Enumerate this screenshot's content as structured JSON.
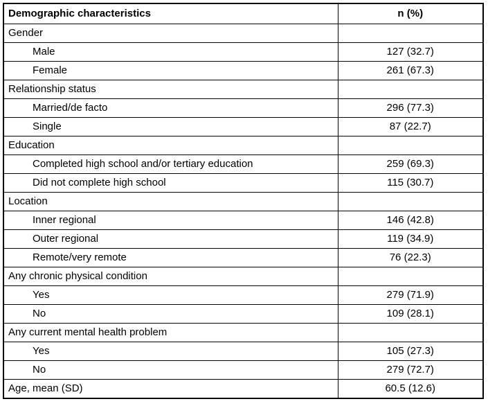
{
  "table": {
    "headers": [
      "Demographic characteristics",
      "n (%)"
    ],
    "rows": [
      {
        "label": "Gender",
        "value": "",
        "indent": false
      },
      {
        "label": "Male",
        "value": "127 (32.7)",
        "indent": true
      },
      {
        "label": "Female",
        "value": "261 (67.3)",
        "indent": true
      },
      {
        "label": "Relationship status",
        "value": "",
        "indent": false
      },
      {
        "label": "Married/de facto",
        "value": "296 (77.3)",
        "indent": true
      },
      {
        "label": "Single",
        "value": "87 (22.7)",
        "indent": true
      },
      {
        "label": "Education",
        "value": "",
        "indent": false
      },
      {
        "label": "Completed high school and/or tertiary education",
        "value": "259 (69.3)",
        "indent": true
      },
      {
        "label": "Did not complete high school",
        "value": "115 (30.7)",
        "indent": true
      },
      {
        "label": "Location",
        "value": "",
        "indent": false
      },
      {
        "label": "Inner regional",
        "value": "146 (42.8)",
        "indent": true
      },
      {
        "label": "Outer regional",
        "value": "119 (34.9)",
        "indent": true
      },
      {
        "label": "Remote/very remote",
        "value": "76 (22.3)",
        "indent": true
      },
      {
        "label": "Any chronic physical condition",
        "value": "",
        "indent": false
      },
      {
        "label": "Yes",
        "value": "279 (71.9)",
        "indent": true
      },
      {
        "label": "No",
        "value": "109 (28.1)",
        "indent": true
      },
      {
        "label": "Any current mental health problem",
        "value": "",
        "indent": false
      },
      {
        "label": "Yes",
        "value": "105 (27.3)",
        "indent": true
      },
      {
        "label": "No",
        "value": "279 (72.7)",
        "indent": true
      },
      {
        "label": "Age, mean (SD)",
        "value": "60.5 (12.6)",
        "indent": false
      }
    ],
    "colors": {
      "border": "#000000",
      "text": "#000000",
      "background": "#ffffff"
    }
  }
}
